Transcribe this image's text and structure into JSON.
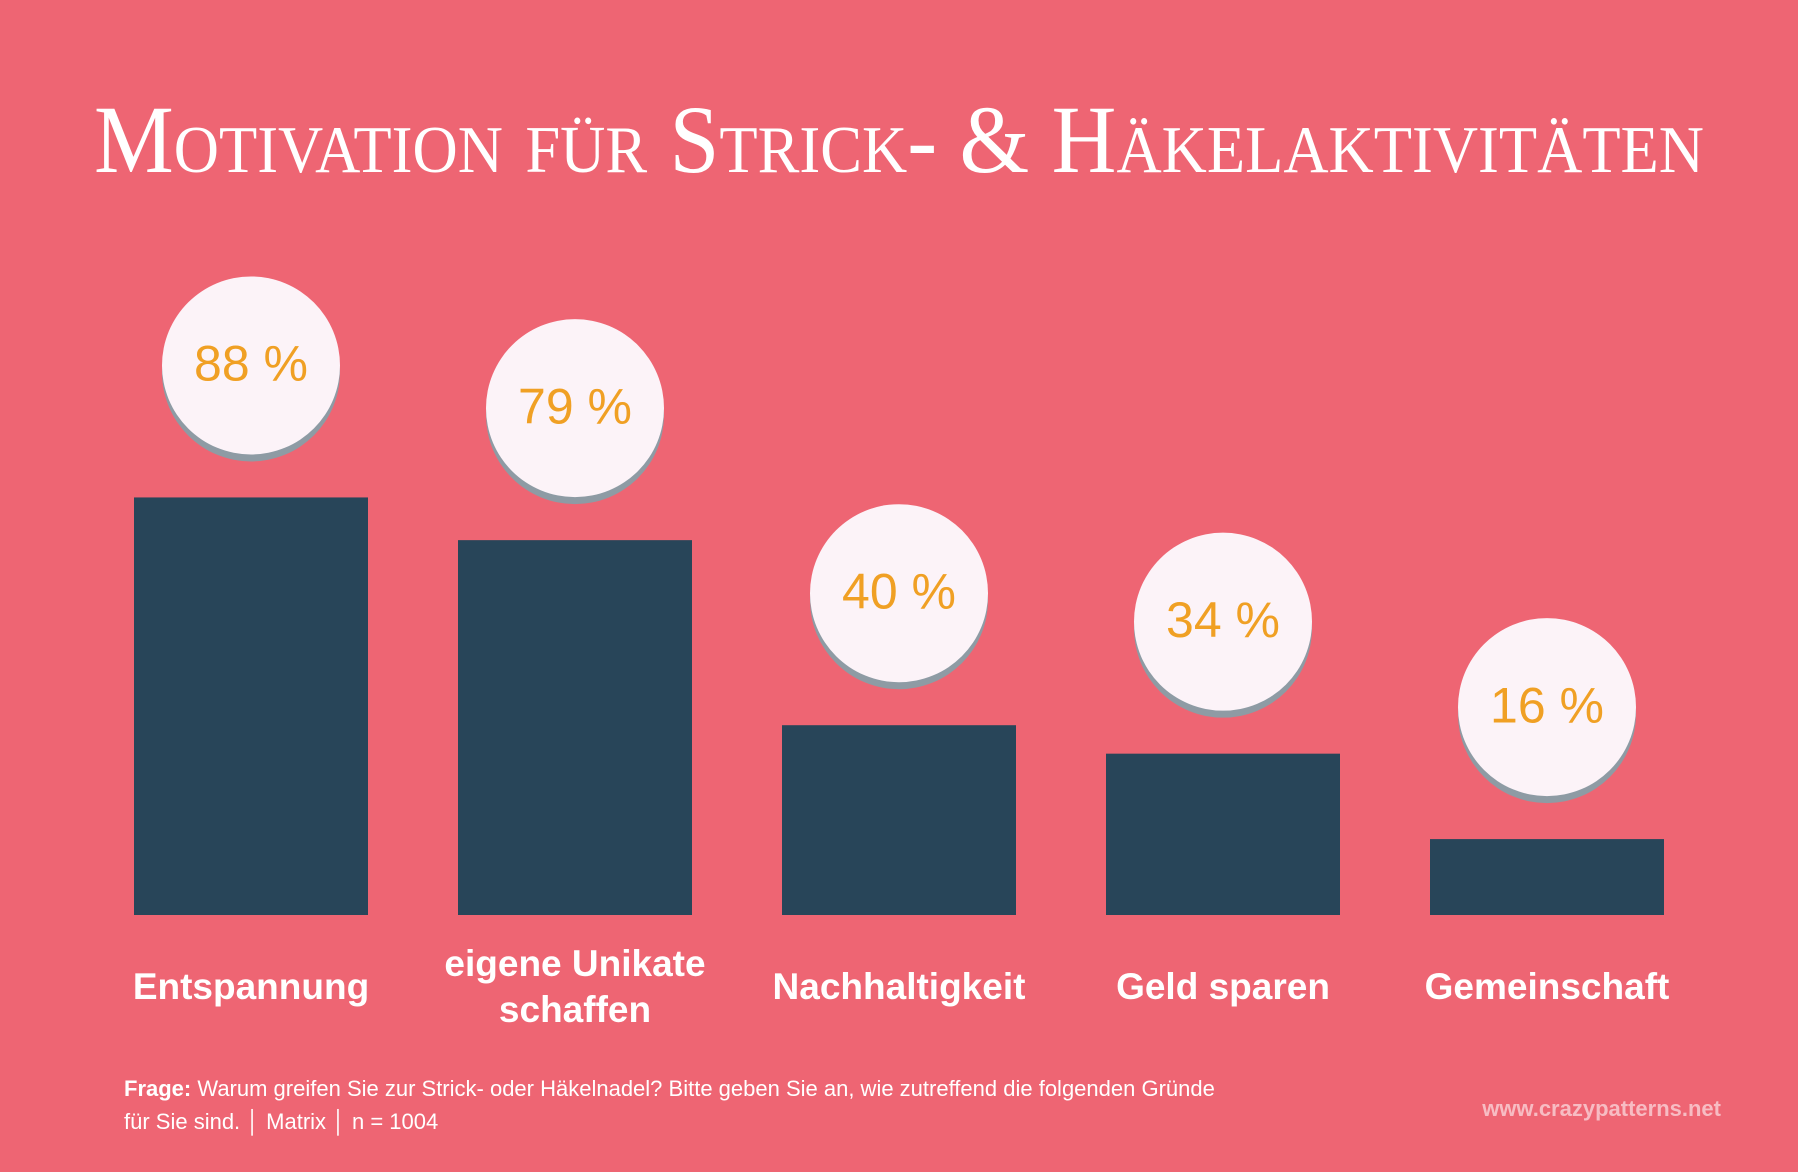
{
  "chart_data": {
    "type": "bar",
    "title": "Motivation für Strick- & Häkelaktivitäten",
    "categories": [
      "Entspannung",
      "eigene Unikate schaffen",
      "Nachhaltigkeit",
      "Geld sparen",
      "Gemeinschaft"
    ],
    "values": [
      88,
      79,
      40,
      34,
      16
    ],
    "value_labels": [
      "88 %",
      "79 %",
      "40 %",
      "34 %",
      "16 %"
    ],
    "color": "#284559",
    "label_color": "#f0a024",
    "ylim": [
      0,
      100
    ],
    "note": {
      "label": "Frage:",
      "text": "Warum greifen Sie zur Strick- oder Häkelnadel? Bitte geben Sie an, wie zutreffend die folgenden Gründe für Sie sind. │ Matrix │ n = 1004"
    },
    "source": "www.crazypatterns.net"
  }
}
